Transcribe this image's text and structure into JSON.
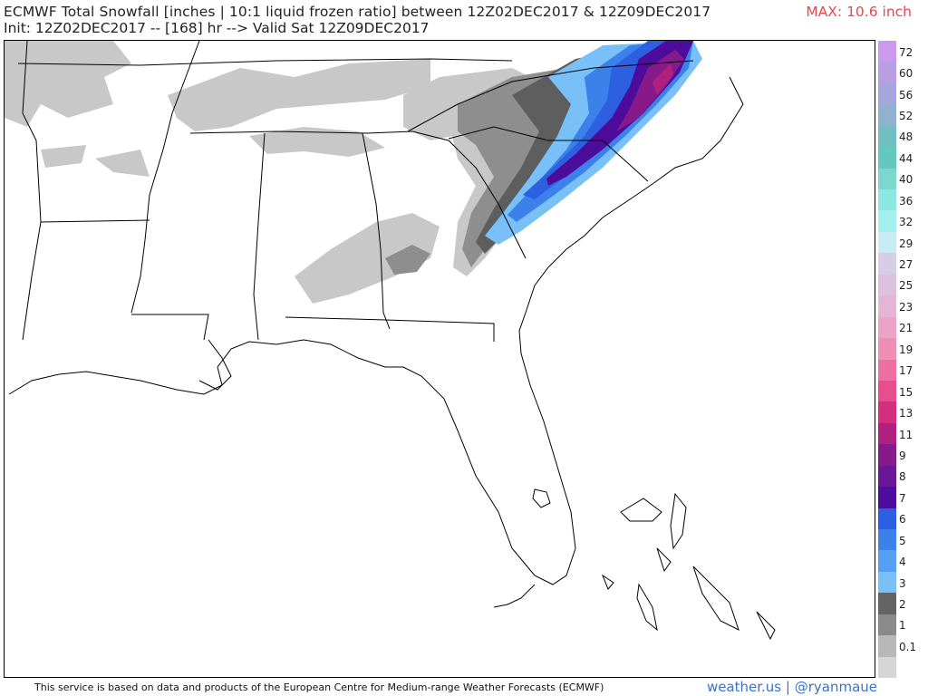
{
  "header": {
    "title_line1": "ECMWF Total Snowfall [inches | 10:1 liquid frozen ratio] between 12Z02DEC2017 & 12Z09DEC2017",
    "title_line2": "Init: 12Z02DEC2017 -- [168] hr --> Valid Sat 12Z09DEC2017",
    "max_label": "MAX: 10.6 inch"
  },
  "colorbar": {
    "labels": [
      "72",
      "60",
      "56",
      "52",
      "48",
      "44",
      "40",
      "36",
      "32",
      "29",
      "27",
      "25",
      "23",
      "21",
      "19",
      "17",
      "15",
      "13",
      "11",
      "9",
      "8",
      "7",
      "6",
      "5",
      "4",
      "3",
      "2",
      "1",
      "0.1"
    ],
    "colors": [
      "#cc99ee",
      "#ba9ee4",
      "#a6a6dc",
      "#8fb3cf",
      "#70c0c2",
      "#63c8bd",
      "#7ad8cf",
      "#8ee8e2",
      "#a3f0ef",
      "#c9ecf2",
      "#d8cde6",
      "#dcc2dc",
      "#e2b6d4",
      "#eba4c5",
      "#f08fb5",
      "#ee6fa2",
      "#e64e8e",
      "#d42f7e",
      "#b0207e",
      "#861a8a",
      "#6a1698",
      "#4e0c9c",
      "#2d60e0",
      "#3c80ea",
      "#55a0f2",
      "#7ac0f8",
      "#646464",
      "#8a8a8a",
      "#b8b8b8",
      "#d6d6d6"
    ]
  },
  "map": {
    "region": "Southeastern United States",
    "snow_colors": {
      "light": "#c2c2c2",
      "mid": "#8c8c8c",
      "dark": "#5e5e5e",
      "blue_light": "#7ac0f8",
      "blue": "#3c80ea",
      "blue_dark": "#2d60e0",
      "violet": "#4e0c9c",
      "purple": "#861a8a",
      "magenta": "#b0207e"
    }
  },
  "footer": {
    "credit": "This service is based on data and products of the European Centre for Medium-range Weather Forecasts (ECMWF)",
    "brand": "weather.us | @ryanmaue"
  }
}
